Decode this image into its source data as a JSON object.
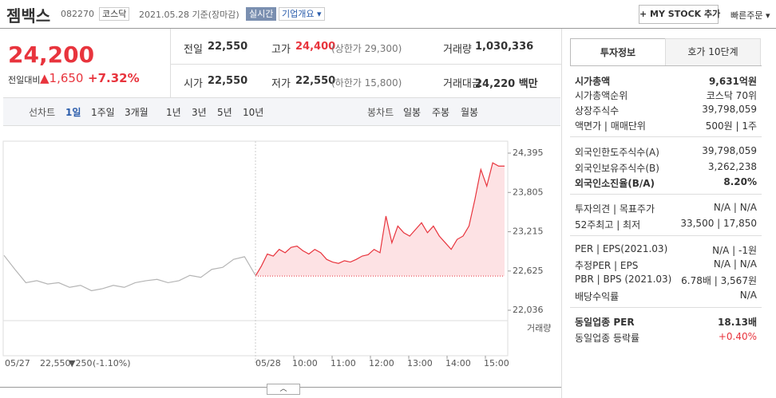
{
  "header": {
    "name": "젬백스",
    "code": "082270",
    "market": "코스닥",
    "date": "2021.05.28 기준(장마감)",
    "realtime": "실시간",
    "overview": "기업개요",
    "my_stock": "+ MY STOCK 추가",
    "quick_order": "빠른주문"
  },
  "quote": {
    "price": "24,200",
    "change_label": "전일대비",
    "change": "▲1,650",
    "rate": "+7.32%"
  },
  "stats": [
    [
      {
        "label": "전일",
        "value": "22,550"
      },
      {
        "label": "고가",
        "value": "24,400",
        "note": "(상한가 29,300)"
      },
      {
        "label": "거래량",
        "value": "1,030,336"
      }
    ],
    [
      {
        "label": "시가",
        "value": "22,550"
      },
      {
        "label": "저가",
        "value": "22,550",
        "note": "(하한가 15,800)"
      },
      {
        "label": "거래대금",
        "value": "24,220 백만"
      }
    ]
  ],
  "periods": {
    "line_label": "선차트",
    "line": [
      "1일",
      "1주일",
      "3개월",
      "1년",
      "3년",
      "5년",
      "10년"
    ],
    "candle_label": "봉차트",
    "candle": [
      "일봉",
      "주봉",
      "월봉"
    ]
  },
  "chart": {
    "type": "line",
    "ylim": [
      22036,
      24395
    ],
    "yticks": [
      {
        "value": 24395,
        "label": "24,395"
      },
      {
        "value": 23805,
        "label": "23,805"
      },
      {
        "value": 23215,
        "label": "23,215"
      },
      {
        "value": 22625,
        "label": "22,625"
      },
      {
        "value": 22036,
        "label": "22,036"
      }
    ],
    "prev_close": 22550,
    "prev_day": {
      "label": "05/27",
      "color": "#b5b5b5",
      "values": [
        22860,
        22650,
        22450,
        22480,
        22430,
        22450,
        22380,
        22410,
        22330,
        22360,
        22410,
        22380,
        22450,
        22480,
        22500,
        22450,
        22480,
        22560,
        22530,
        22650,
        22680,
        22800,
        22840,
        22560
      ]
    },
    "today": {
      "label": "05/28",
      "color": "#e8343d",
      "values": [
        22550,
        22700,
        22880,
        22850,
        22950,
        22900,
        22980,
        23000,
        22930,
        22880,
        22950,
        22900,
        22800,
        22760,
        22740,
        22780,
        22760,
        22800,
        22850,
        22870,
        22950,
        22900,
        23450,
        23050,
        23300,
        23200,
        23150,
        23250,
        23350,
        23200,
        23300,
        23150,
        23050,
        22950,
        23100,
        23150,
        23300,
        23700,
        24150,
        23900,
        24250,
        24200,
        24200
      ]
    },
    "x_labels": [
      "10:00",
      "11:00",
      "12:00",
      "13:00",
      "14:00",
      "15:00"
    ],
    "volume_label": "거래량",
    "footer": {
      "date": "05/27",
      "close": "22,550",
      "change": "▼250",
      "rate": "(-1.10%)"
    }
  },
  "tabs": [
    "투자정보",
    "호가 10단계"
  ],
  "info": [
    [
      {
        "label": "시가총액",
        "value": "9,631억원",
        "strong": true
      },
      {
        "label": "시가총액순위",
        "value": "코스닥 70위"
      },
      {
        "label": "상장주식수",
        "value": "39,798,059"
      },
      {
        "label": "액면가 | 매매단위",
        "value": "500원 | 1주"
      }
    ],
    [
      {
        "label": "외국인한도주식수(A)",
        "value": "39,798,059"
      },
      {
        "label": "외국인보유주식수(B)",
        "value": "3,262,238"
      },
      {
        "label": "외국인소진율(B/A)",
        "value": "8.20%",
        "strong": true
      }
    ],
    [
      {
        "label": "투자의견 | 목표주가",
        "value": "N/A | N/A"
      },
      {
        "label": "52주최고 | 최저",
        "value": "33,500 | 17,850"
      }
    ],
    [
      {
        "label": "PER | EPS(2021.03)",
        "value": "N/A | -1원"
      },
      {
        "label": "추정PER | EPS",
        "value": "N/A | N/A"
      },
      {
        "label": "PBR | BPS (2021.03)",
        "value": "6.78배 | 3,567원"
      },
      {
        "label": "배당수익률",
        "value": "N/A"
      }
    ],
    [
      {
        "label": "동일업종 PER",
        "value": "18.13배",
        "strong": true
      },
      {
        "label": "동일업종 등락률",
        "value": "+0.40%",
        "red": true
      }
    ]
  ]
}
